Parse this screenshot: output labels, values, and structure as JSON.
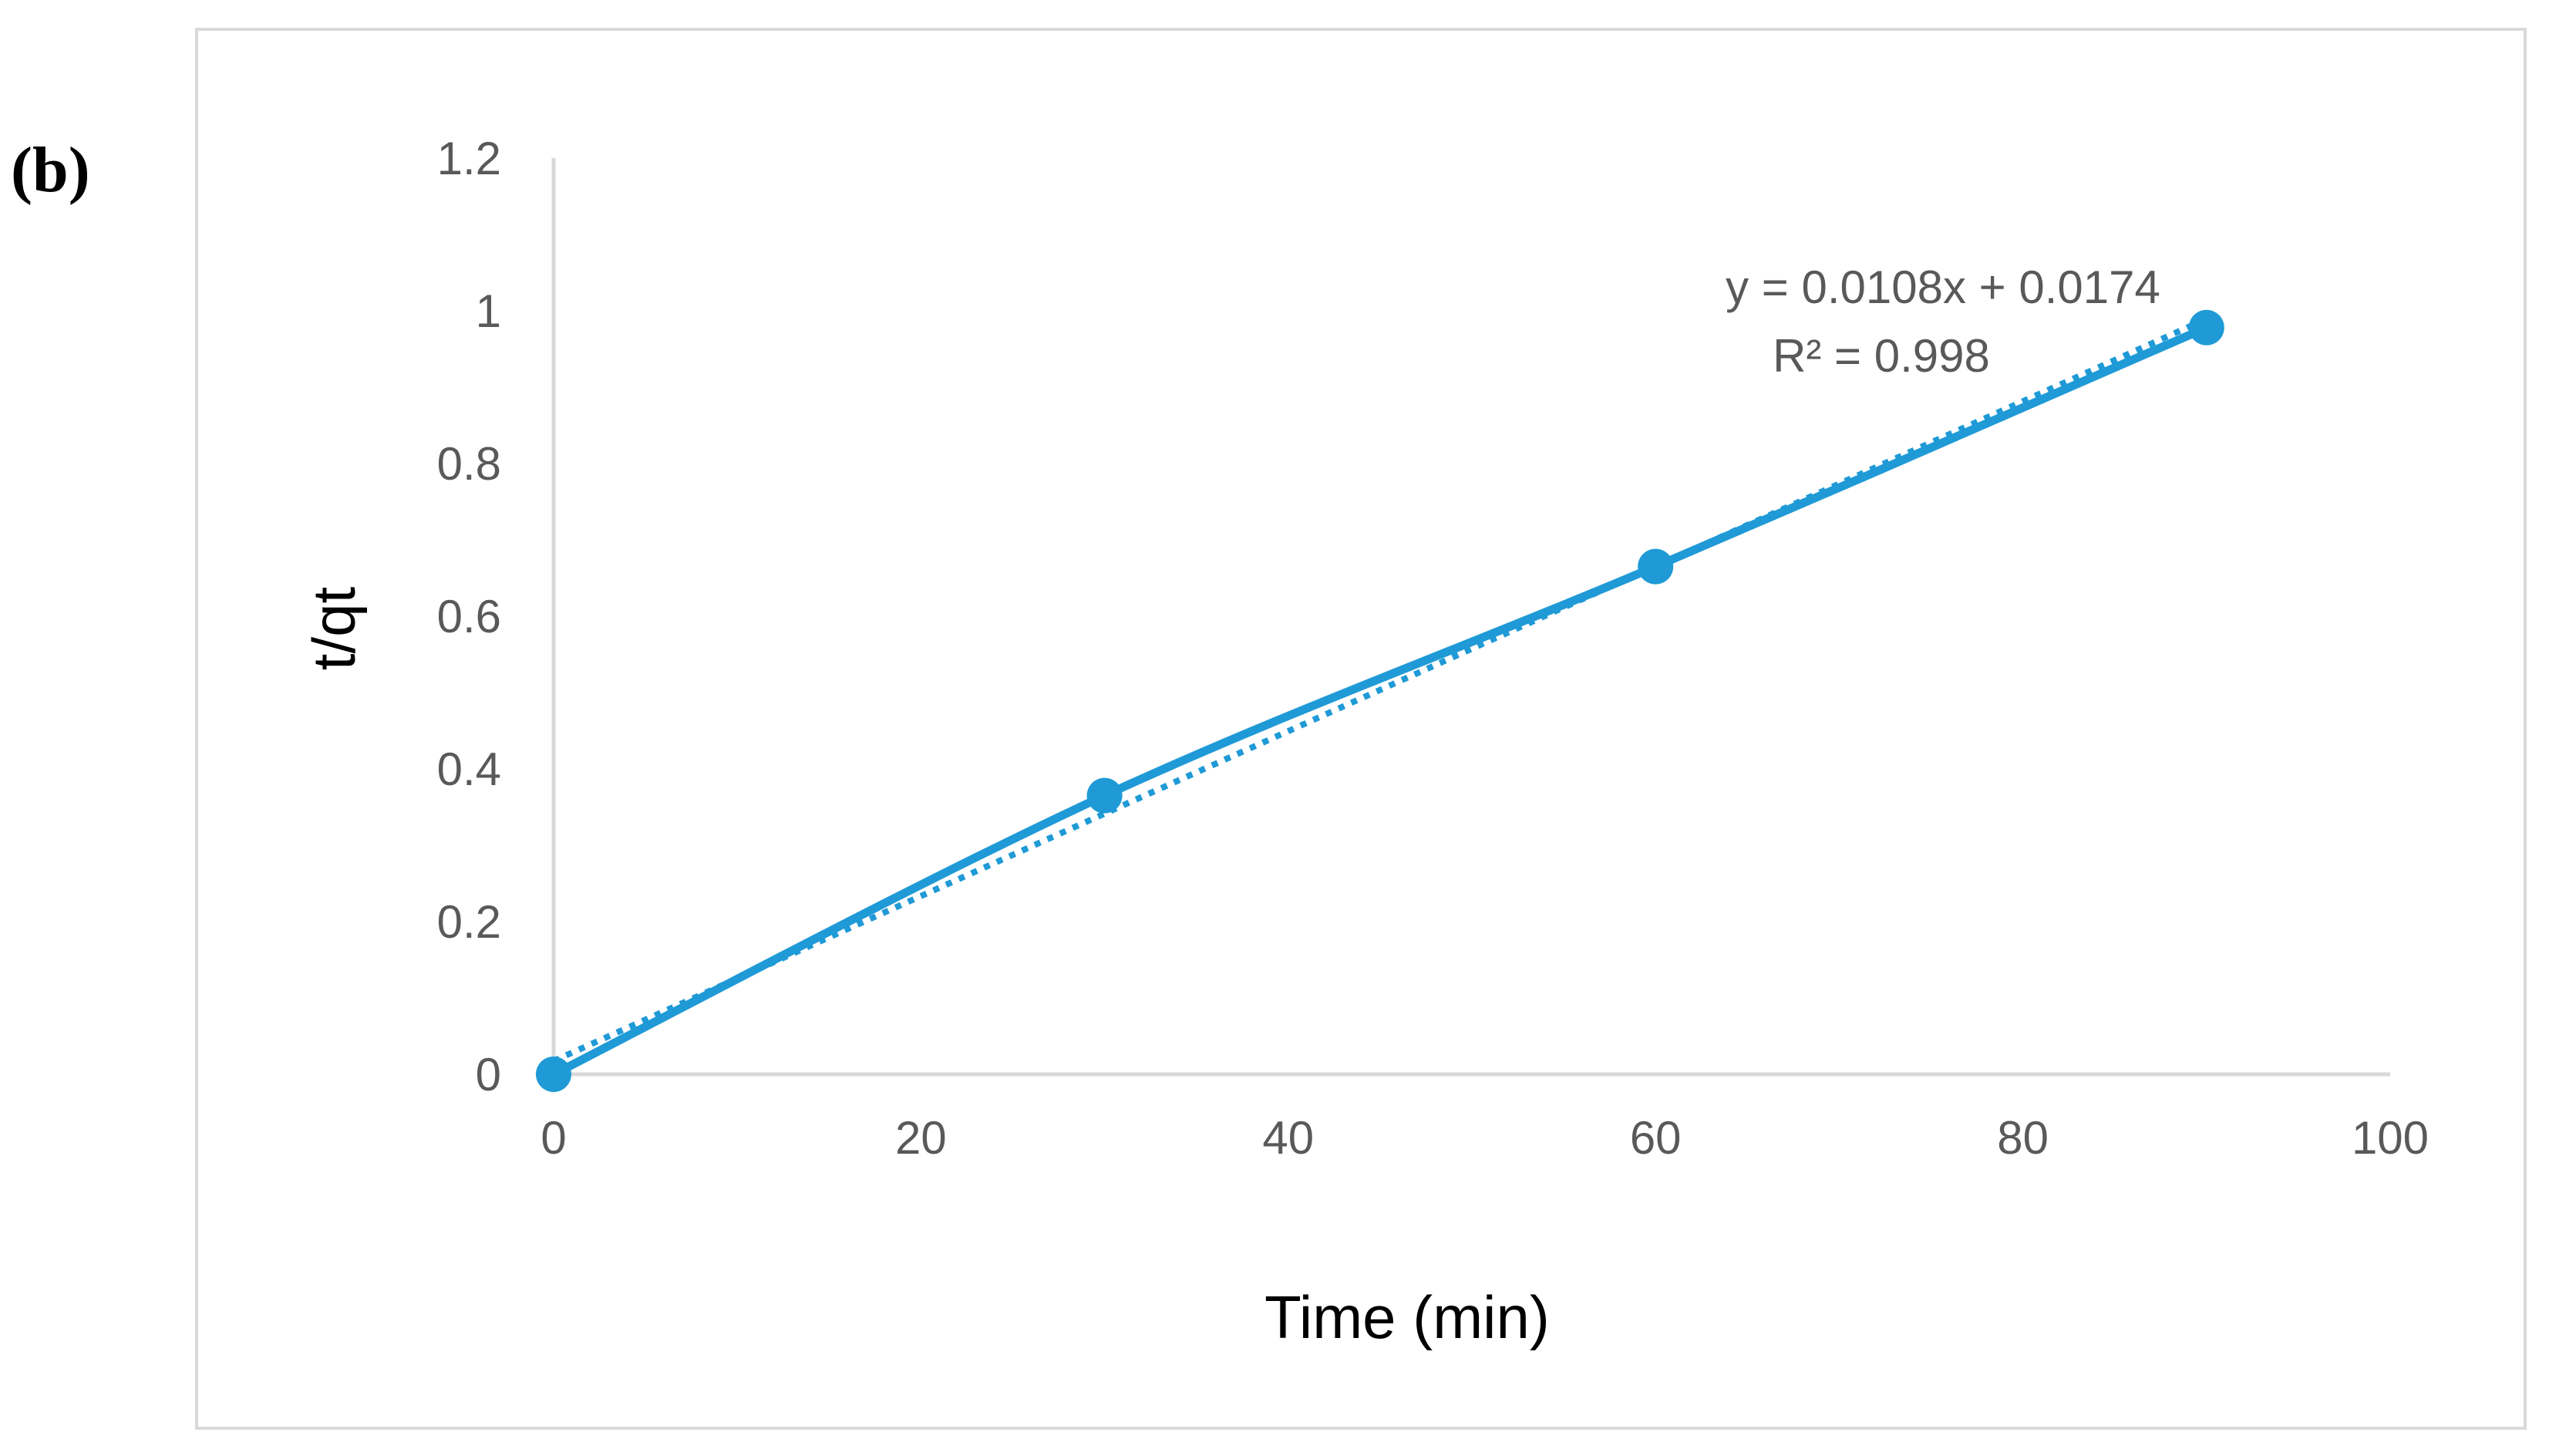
{
  "panel_label": "(b)",
  "chart_data": {
    "type": "scatter",
    "xlabel": "Time (min)",
    "ylabel": "t/qt",
    "xlim": [
      0,
      100
    ],
    "ylim": [
      0,
      1.2
    ],
    "x_ticks": [
      "0",
      "20",
      "40",
      "60",
      "80",
      "100"
    ],
    "y_ticks": [
      "0",
      "0.2",
      "0.4",
      "0.6",
      "0.8",
      "1",
      "1.2"
    ],
    "grid": false,
    "series": [
      {
        "x": [
          0,
          30,
          60,
          90
        ],
        "y": [
          0,
          0.365,
          0.665,
          0.978
        ],
        "style": "smoothed line with markers",
        "color": "#1f9ad6"
      }
    ],
    "trendline": {
      "type": "linear",
      "slope": 0.0108,
      "intercept": 0.0174,
      "x_range": [
        0,
        90
      ],
      "style": "dotted",
      "color": "#1f9ad6"
    },
    "annotations": {
      "equation": "y = 0.0108x + 0.0174",
      "r_squared": "R² = 0.998"
    }
  },
  "colors": {
    "series": "#1f9ad6",
    "axis": "#d9d9d9",
    "frame": "#d9d9d9",
    "tick_text": "#595959"
  }
}
